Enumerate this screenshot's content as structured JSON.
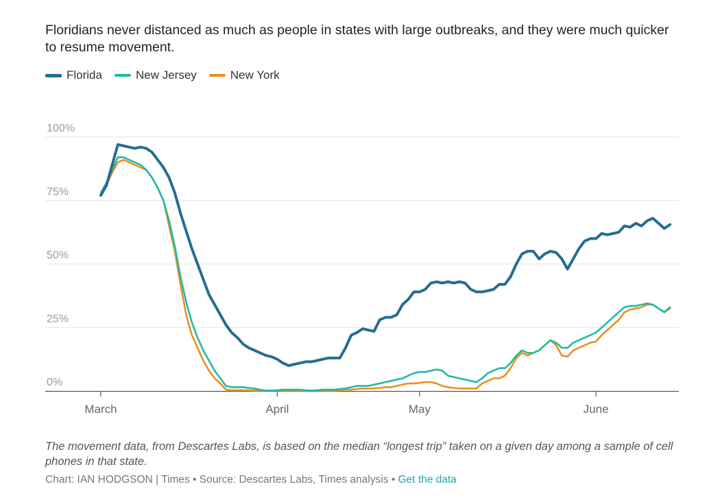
{
  "chart_data": {
    "type": "line",
    "title": "Floridians never distanced as much as people in states with large outbreaks, and they were much quicker to resume movement.",
    "xlabel": "",
    "ylabel": "",
    "ylim": [
      0,
      100
    ],
    "y_ticks": [
      "0%",
      "25%",
      "50%",
      "75%",
      "100%"
    ],
    "x_ticks": [
      {
        "label": "March",
        "day": 0
      },
      {
        "label": "April",
        "day": 31
      },
      {
        "label": "May",
        "day": 56
      },
      {
        "label": "June",
        "day": 87
      }
    ],
    "x_range": [
      0,
      100
    ],
    "series": [
      {
        "name": "Florida",
        "color": "#256d91",
        "points": [
          [
            0,
            77
          ],
          [
            1,
            81
          ],
          [
            2,
            89
          ],
          [
            3,
            97
          ],
          [
            4,
            96.5
          ],
          [
            5,
            96
          ],
          [
            6,
            95.5
          ],
          [
            7,
            96
          ],
          [
            8,
            95.5
          ],
          [
            9,
            94
          ],
          [
            10,
            91
          ],
          [
            11,
            88
          ],
          [
            12,
            84
          ],
          [
            13,
            78
          ],
          [
            14,
            70
          ],
          [
            15,
            63
          ],
          [
            16,
            56
          ],
          [
            17,
            50
          ],
          [
            18,
            44
          ],
          [
            19,
            38
          ],
          [
            20,
            34
          ],
          [
            21,
            30
          ],
          [
            22,
            26
          ],
          [
            23,
            23
          ],
          [
            24,
            21
          ],
          [
            25,
            18.5
          ],
          [
            26,
            17
          ],
          [
            27,
            16
          ],
          [
            28,
            15
          ],
          [
            29,
            14
          ],
          [
            30,
            13.5
          ],
          [
            31,
            12.5
          ],
          [
            32,
            11
          ],
          [
            33,
            10
          ],
          [
            34,
            10.5
          ],
          [
            35,
            11
          ],
          [
            36,
            11.5
          ],
          [
            37,
            11.5
          ],
          [
            38,
            12
          ],
          [
            39,
            12.5
          ],
          [
            40,
            13
          ],
          [
            41,
            13
          ],
          [
            42,
            13
          ],
          [
            43,
            17
          ],
          [
            44,
            22
          ],
          [
            45,
            23
          ],
          [
            46,
            24.5
          ],
          [
            47,
            24
          ],
          [
            48,
            23.5
          ],
          [
            49,
            28
          ],
          [
            50,
            29
          ],
          [
            51,
            29
          ],
          [
            52,
            30
          ],
          [
            53,
            34
          ],
          [
            54,
            36
          ],
          [
            55,
            39
          ],
          [
            56,
            39
          ],
          [
            57,
            40
          ],
          [
            58,
            42.5
          ],
          [
            59,
            43
          ],
          [
            60,
            42.5
          ],
          [
            61,
            43
          ],
          [
            62,
            42.5
          ],
          [
            63,
            43
          ],
          [
            64,
            42.5
          ],
          [
            65,
            40
          ],
          [
            66,
            39
          ],
          [
            67,
            39
          ],
          [
            68,
            39.5
          ],
          [
            69,
            40
          ],
          [
            70,
            42
          ],
          [
            71,
            42
          ],
          [
            72,
            45
          ],
          [
            73,
            50
          ],
          [
            74,
            54
          ],
          [
            75,
            55
          ],
          [
            76,
            55
          ],
          [
            77,
            52
          ],
          [
            78,
            54
          ],
          [
            79,
            55
          ],
          [
            80,
            54.5
          ],
          [
            81,
            52
          ],
          [
            82,
            48
          ],
          [
            83,
            52
          ],
          [
            84,
            56
          ],
          [
            85,
            59
          ],
          [
            86,
            60
          ],
          [
            87,
            60
          ],
          [
            88,
            62
          ],
          [
            89,
            61.5
          ],
          [
            90,
            62
          ],
          [
            91,
            62.5
          ],
          [
            92,
            65
          ],
          [
            93,
            64.5
          ],
          [
            94,
            66
          ],
          [
            95,
            65
          ],
          [
            96,
            67
          ],
          [
            97,
            68
          ],
          [
            98,
            66
          ],
          [
            99,
            64
          ],
          [
            100,
            65.5
          ]
        ]
      },
      {
        "name": "New Jersey",
        "color": "#1ebba6",
        "points": [
          [
            0,
            78
          ],
          [
            1,
            82
          ],
          [
            2,
            87
          ],
          [
            3,
            92
          ],
          [
            4,
            92
          ],
          [
            5,
            91
          ],
          [
            6,
            90
          ],
          [
            7,
            89
          ],
          [
            8,
            87
          ],
          [
            9,
            84
          ],
          [
            10,
            80
          ],
          [
            11,
            75
          ],
          [
            12,
            67
          ],
          [
            13,
            57
          ],
          [
            14,
            45
          ],
          [
            15,
            35
          ],
          [
            16,
            27
          ],
          [
            17,
            21
          ],
          [
            18,
            16
          ],
          [
            19,
            12
          ],
          [
            20,
            8
          ],
          [
            21,
            5
          ],
          [
            22,
            2
          ],
          [
            23,
            1.5
          ],
          [
            24,
            1.5
          ],
          [
            25,
            1.5
          ],
          [
            26,
            1.2
          ],
          [
            27,
            1
          ],
          [
            28,
            0.5
          ],
          [
            29,
            0.2
          ],
          [
            30,
            0.2
          ],
          [
            31,
            0.3
          ],
          [
            32,
            0.5
          ],
          [
            33,
            0.5
          ],
          [
            34,
            0.5
          ],
          [
            35,
            0.5
          ],
          [
            36,
            0.3
          ],
          [
            37,
            0.2
          ],
          [
            38,
            0.3
          ],
          [
            39,
            0.5
          ],
          [
            40,
            0.5
          ],
          [
            41,
            0.5
          ],
          [
            42,
            0.8
          ],
          [
            43,
            1
          ],
          [
            44,
            1.5
          ],
          [
            45,
            2
          ],
          [
            46,
            2
          ],
          [
            47,
            2
          ],
          [
            48,
            2.5
          ],
          [
            49,
            3
          ],
          [
            50,
            3.5
          ],
          [
            51,
            4
          ],
          [
            52,
            4.5
          ],
          [
            53,
            5
          ],
          [
            54,
            6
          ],
          [
            55,
            7
          ],
          [
            56,
            7.5
          ],
          [
            57,
            7.5
          ],
          [
            58,
            8
          ],
          [
            59,
            8.5
          ],
          [
            60,
            8
          ],
          [
            61,
            6
          ],
          [
            62,
            5.5
          ],
          [
            63,
            5
          ],
          [
            64,
            4.5
          ],
          [
            65,
            4
          ],
          [
            66,
            3.5
          ],
          [
            67,
            5
          ],
          [
            68,
            7
          ],
          [
            69,
            8
          ],
          [
            70,
            9
          ],
          [
            71,
            9
          ],
          [
            72,
            11
          ],
          [
            73,
            14
          ],
          [
            74,
            16
          ],
          [
            75,
            15
          ],
          [
            76,
            15
          ],
          [
            77,
            16
          ],
          [
            78,
            18
          ],
          [
            79,
            20
          ],
          [
            80,
            19
          ],
          [
            81,
            17
          ],
          [
            82,
            17
          ],
          [
            83,
            19
          ],
          [
            84,
            20
          ],
          [
            85,
            21
          ],
          [
            86,
            22
          ],
          [
            87,
            23
          ],
          [
            88,
            25
          ],
          [
            89,
            27
          ],
          [
            90,
            29
          ],
          [
            91,
            31
          ],
          [
            92,
            33
          ],
          [
            93,
            33.5
          ],
          [
            94,
            33.5
          ],
          [
            95,
            34
          ],
          [
            96,
            34.5
          ],
          [
            97,
            34
          ],
          [
            98,
            32.5
          ],
          [
            99,
            31
          ],
          [
            100,
            33
          ]
        ]
      },
      {
        "name": "New York",
        "color": "#e8901d",
        "points": [
          [
            0,
            77
          ],
          [
            1,
            81
          ],
          [
            2,
            86
          ],
          [
            3,
            90
          ],
          [
            4,
            91
          ],
          [
            5,
            90
          ],
          [
            6,
            89
          ],
          [
            7,
            88
          ],
          [
            8,
            87
          ],
          [
            9,
            84
          ],
          [
            10,
            80
          ],
          [
            11,
            75
          ],
          [
            12,
            65
          ],
          [
            13,
            55
          ],
          [
            14,
            42
          ],
          [
            15,
            30
          ],
          [
            16,
            22
          ],
          [
            17,
            17
          ],
          [
            18,
            12
          ],
          [
            19,
            8
          ],
          [
            20,
            5
          ],
          [
            21,
            3
          ],
          [
            22,
            0.5
          ],
          [
            23,
            0.3
          ],
          [
            24,
            0.3
          ],
          [
            25,
            0.3
          ],
          [
            26,
            0.3
          ],
          [
            27,
            0.2
          ],
          [
            28,
            0.2
          ],
          [
            29,
            0.2
          ],
          [
            30,
            0.2
          ],
          [
            31,
            0.2
          ],
          [
            32,
            0.2
          ],
          [
            33,
            0.2
          ],
          [
            34,
            0.2
          ],
          [
            35,
            0.2
          ],
          [
            36,
            0.2
          ],
          [
            37,
            0.2
          ],
          [
            38,
            0.2
          ],
          [
            39,
            0.2
          ],
          [
            40,
            0.2
          ],
          [
            41,
            0.2
          ],
          [
            42,
            0.3
          ],
          [
            43,
            0.5
          ],
          [
            44,
            0.5
          ],
          [
            45,
            0.8
          ],
          [
            46,
            1
          ],
          [
            47,
            1
          ],
          [
            48,
            1
          ],
          [
            49,
            1.2
          ],
          [
            50,
            1.5
          ],
          [
            51,
            1.5
          ],
          [
            52,
            2
          ],
          [
            53,
            2.5
          ],
          [
            54,
            3
          ],
          [
            55,
            3
          ],
          [
            56,
            3.2
          ],
          [
            57,
            3.5
          ],
          [
            58,
            3.5
          ],
          [
            59,
            3
          ],
          [
            60,
            2
          ],
          [
            61,
            1.5
          ],
          [
            62,
            1.2
          ],
          [
            63,
            1
          ],
          [
            64,
            1
          ],
          [
            65,
            1
          ],
          [
            66,
            1
          ],
          [
            67,
            3
          ],
          [
            68,
            4
          ],
          [
            69,
            5
          ],
          [
            70,
            5
          ],
          [
            71,
            6
          ],
          [
            72,
            9
          ],
          [
            73,
            13
          ],
          [
            74,
            15
          ],
          [
            75,
            14
          ],
          [
            76,
            15
          ],
          [
            77,
            16
          ],
          [
            78,
            18
          ],
          [
            79,
            20
          ],
          [
            80,
            18
          ],
          [
            81,
            14
          ],
          [
            82,
            13.5
          ],
          [
            83,
            16
          ],
          [
            84,
            17
          ],
          [
            85,
            18
          ],
          [
            86,
            19
          ],
          [
            87,
            19.5
          ],
          [
            88,
            22
          ],
          [
            89,
            24
          ],
          [
            90,
            26
          ],
          [
            91,
            28
          ],
          [
            92,
            31
          ],
          [
            93,
            32
          ],
          [
            94,
            32.5
          ],
          [
            95,
            33
          ],
          [
            96,
            34
          ],
          [
            97,
            34
          ],
          [
            98,
            32.5
          ],
          [
            99,
            31
          ],
          [
            100,
            32.5
          ]
        ]
      }
    ],
    "note": "The movement data, from Descartes Labs, is based on the median “longest trip” taken on a given day among a sample of cell phones in that state.",
    "credit_text": "Chart: IAN HODGSON | Times • Source: Descartes Labs, Times analysis •",
    "credit_link": "Get the data"
  }
}
